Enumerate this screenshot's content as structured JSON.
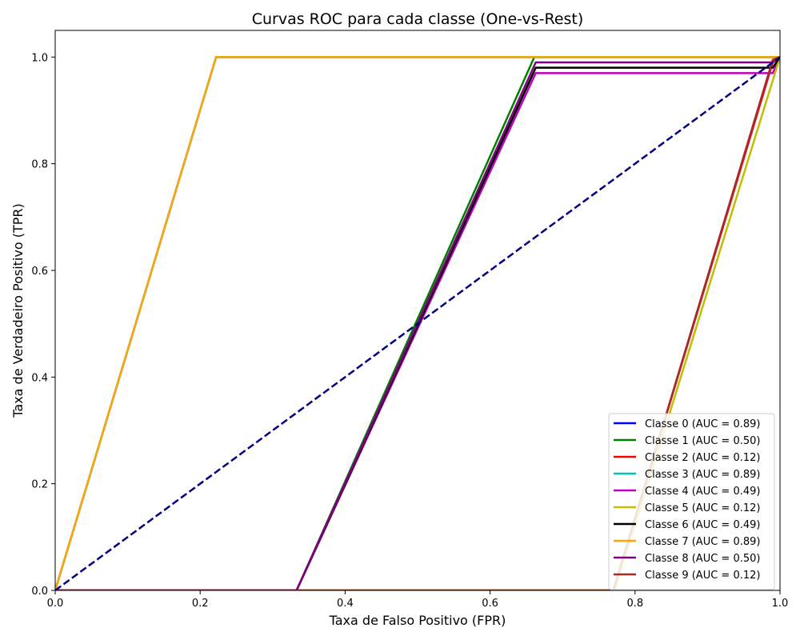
{
  "chart_data": {
    "type": "line",
    "title": "Curvas ROC para cada classe (One-vs-Rest)",
    "xlabel": "Taxa de Falso Positivo (FPR)",
    "ylabel": "Taxa de Verdadeiro Positivo (TPR)",
    "xlim": [
      0.0,
      1.0
    ],
    "ylim": [
      0.0,
      1.05
    ],
    "xticks": [
      "0.0",
      "0.2",
      "0.4",
      "0.6",
      "0.8",
      "1.0"
    ],
    "yticks": [
      "0.0",
      "0.2",
      "0.4",
      "0.6",
      "0.8",
      "1.0"
    ],
    "grid": false,
    "legend_position": "lower-right",
    "series": [
      {
        "name": "Classe 0 (AUC = 0.89)",
        "color": "#0000ff",
        "x": [
          0,
          0,
          0.222,
          1
        ],
        "y": [
          0,
          0,
          1,
          1
        ]
      },
      {
        "name": "Classe 1 (AUC = 0.50)",
        "color": "#008000",
        "x": [
          0,
          0.333,
          0.661,
          1
        ],
        "y": [
          0,
          0,
          1,
          1
        ]
      },
      {
        "name": "Classe 2 (AUC = 0.12)",
        "color": "#ff0000",
        "x": [
          0,
          0.77,
          0.99,
          1
        ],
        "y": [
          0,
          0,
          0.99,
          1
        ]
      },
      {
        "name": "Classe 3 (AUC = 0.89)",
        "color": "#00bfbf",
        "x": [
          0,
          0,
          0.222,
          1
        ],
        "y": [
          0,
          0,
          1,
          1
        ]
      },
      {
        "name": "Classe 4 (AUC = 0.49)",
        "color": "#bf00bf",
        "x": [
          0,
          0.333,
          0.663,
          0.99,
          1
        ],
        "y": [
          0,
          0,
          0.97,
          0.97,
          1
        ]
      },
      {
        "name": "Classe 5 (AUC = 0.12)",
        "color": "#bfbf00",
        "x": [
          0,
          0.772,
          1
        ],
        "y": [
          0,
          0,
          1
        ]
      },
      {
        "name": "Classe 6 (AUC = 0.49)",
        "color": "#000000",
        "x": [
          0,
          0.333,
          0.663,
          0.99,
          1
        ],
        "y": [
          0,
          0,
          0.98,
          0.98,
          1
        ]
      },
      {
        "name": "Classe 7 (AUC = 0.89)",
        "color": "#ffa500",
        "x": [
          0,
          0,
          0.222,
          1
        ],
        "y": [
          0,
          0,
          1,
          1
        ]
      },
      {
        "name": "Classe 8 (AUC = 0.50)",
        "color": "#800080",
        "x": [
          0,
          0.333,
          0.663,
          0.99,
          1
        ],
        "y": [
          0,
          0,
          0.99,
          0.99,
          1
        ]
      },
      {
        "name": "Classe 9 (AUC = 0.12)",
        "color": "#a52a2a",
        "x": [
          0,
          0.77,
          0.99,
          1
        ],
        "y": [
          0,
          0,
          0.995,
          1
        ]
      }
    ],
    "reference_line": {
      "color": "#000080",
      "style": "dashed",
      "x": [
        0,
        1
      ],
      "y": [
        0,
        1
      ]
    }
  }
}
